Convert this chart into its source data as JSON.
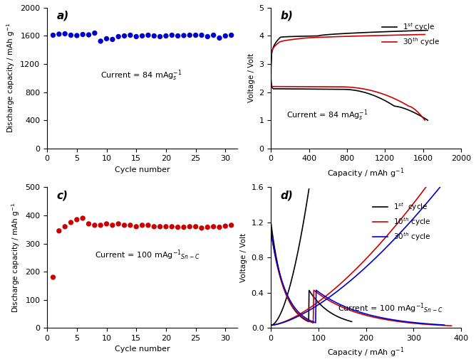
{
  "panel_a": {
    "label": "a)",
    "cycle_numbers": [
      1,
      2,
      3,
      4,
      5,
      6,
      7,
      8,
      9,
      10,
      11,
      12,
      13,
      14,
      15,
      16,
      17,
      18,
      19,
      20,
      21,
      22,
      23,
      24,
      25,
      26,
      27,
      28,
      29,
      30,
      31
    ],
    "capacities": [
      1610,
      1625,
      1630,
      1610,
      1605,
      1620,
      1615,
      1640,
      1525,
      1560,
      1550,
      1590,
      1600,
      1610,
      1590,
      1600,
      1610,
      1600,
      1590,
      1600,
      1610,
      1600,
      1605,
      1610,
      1610,
      1610,
      1590,
      1610,
      1570,
      1600,
      1610
    ],
    "color": "#0000CC",
    "xlabel": "Cycle number",
    "ylabel": "Discharge capacity / mAh g$^{-1}$",
    "ylim": [
      0,
      2000
    ],
    "yticks": [
      0,
      400,
      800,
      1200,
      1600,
      2000
    ],
    "xlim": [
      0,
      32
    ],
    "xticks": [
      0,
      5,
      10,
      15,
      20,
      25,
      30
    ]
  },
  "panel_b": {
    "label": "b)",
    "xlabel": "Capacity / mAh g$^{-1}$",
    "ylabel": "Voltage / Volt",
    "ylim": [
      0,
      5
    ],
    "yticks": [
      0,
      1,
      2,
      3,
      4,
      5
    ],
    "xlim": [
      0,
      2000
    ],
    "xticks": [
      0,
      400,
      800,
      1200,
      1600,
      2000
    ],
    "color_1st": "#000000",
    "color_30th": "#CC0000"
  },
  "panel_c": {
    "label": "c)",
    "cycle_numbers": [
      1,
      2,
      3,
      4,
      5,
      6,
      7,
      8,
      9,
      10,
      11,
      12,
      13,
      14,
      15,
      16,
      17,
      18,
      19,
      20,
      21,
      22,
      23,
      24,
      25,
      26,
      27,
      28,
      29,
      30,
      31
    ],
    "capacities": [
      180,
      345,
      360,
      375,
      385,
      390,
      370,
      365,
      365,
      370,
      365,
      370,
      365,
      365,
      360,
      365,
      365,
      360,
      360,
      360,
      360,
      358,
      358,
      360,
      360,
      355,
      358,
      360,
      358,
      362,
      365
    ],
    "color": "#CC0000",
    "xlabel": "Cycle number",
    "ylabel": "Discharge capacity / mAh g$^{-1}$",
    "ylim": [
      0,
      500
    ],
    "yticks": [
      0,
      100,
      200,
      300,
      400,
      500
    ],
    "xlim": [
      0,
      32
    ],
    "xticks": [
      0,
      5,
      10,
      15,
      20,
      25,
      30
    ]
  },
  "panel_d": {
    "label": "d)",
    "xlabel": "Capacity / mAh g$^{-1}$",
    "ylabel": "Voltage / Volt",
    "ylim": [
      0,
      1.6
    ],
    "yticks": [
      0.0,
      0.4,
      0.8,
      1.2,
      1.6
    ],
    "xlim": [
      0,
      400
    ],
    "xticks": [
      0,
      100,
      200,
      300,
      400
    ],
    "color_1st": "#000000",
    "color_10th": "#CC0000",
    "color_30th": "#0000CC"
  }
}
